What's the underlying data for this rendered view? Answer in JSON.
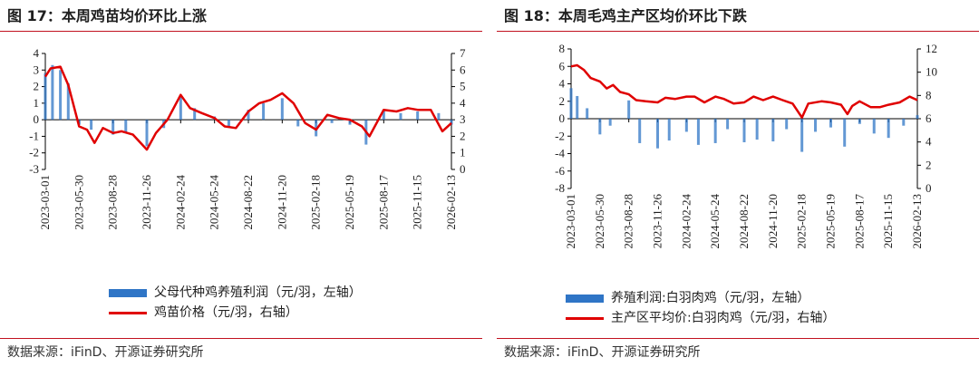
{
  "chart_data": [
    {
      "type": "bar+line",
      "title": "图 17：本周鸡苗均价环比上涨",
      "x_ticks": [
        "2023-03-01",
        "2023-05-30",
        "2023-08-28",
        "2023-11-26",
        "2024-02-24",
        "2024-05-24",
        "2024-08-22",
        "2024-11-20",
        "2025-02-18",
        "2025-05-19",
        "2025-08-17",
        "2025-11-15",
        "2026-02-13"
      ],
      "y_left": {
        "min": -3,
        "max": 4,
        "ticks": [
          "4",
          "3",
          "2",
          "1",
          "0",
          "-1",
          "-2",
          "-3"
        ]
      },
      "y_right": {
        "min": 0,
        "max": 7,
        "ticks": [
          "7",
          "6",
          "5",
          "4",
          "3",
          "2",
          "1",
          "0"
        ]
      },
      "series": [
        {
          "name": "父母代种鸡养殖利润（元/羽，左轴）",
          "type": "bar",
          "axis": "left",
          "color": "#2f75c6",
          "x": [
            "2023-03-01",
            "2023-03-20",
            "2023-04-10",
            "2023-05-01",
            "2023-05-30",
            "2023-07-01",
            "2023-08-28",
            "2023-10-01",
            "2023-11-26",
            "2024-01-10",
            "2024-02-24",
            "2024-04-01",
            "2024-05-24",
            "2024-07-01",
            "2024-08-22",
            "2024-10-01",
            "2024-11-20",
            "2025-01-01",
            "2025-02-18",
            "2025-04-01",
            "2025-05-19",
            "2025-07-01",
            "2025-08-17",
            "2025-10-01",
            "2025-11-15",
            "2026-01-10",
            "2026-02-13"
          ],
          "values": [
            2.8,
            3.3,
            3.0,
            2.2,
            -0.3,
            -0.6,
            -0.9,
            -0.8,
            -1.6,
            -0.5,
            1.4,
            0.7,
            0.2,
            -0.4,
            0.6,
            1.0,
            1.3,
            -0.4,
            -1.0,
            -0.2,
            -0.3,
            -1.5,
            0.6,
            0.4,
            0.5,
            0.4,
            -0.3
          ]
        },
        {
          "name": "鸡苗价格（元/羽，右轴）",
          "type": "line",
          "axis": "right",
          "color": "#e00000",
          "x": [
            "2023-03-01",
            "2023-03-15",
            "2023-04-10",
            "2023-05-01",
            "2023-05-30",
            "2023-06-20",
            "2023-07-10",
            "2023-08-01",
            "2023-08-28",
            "2023-09-20",
            "2023-10-20",
            "2023-11-26",
            "2023-12-20",
            "2024-01-20",
            "2024-02-24",
            "2024-03-20",
            "2024-04-20",
            "2024-05-24",
            "2024-06-20",
            "2024-07-20",
            "2024-08-22",
            "2024-09-20",
            "2024-10-20",
            "2024-11-20",
            "2024-12-20",
            "2025-01-20",
            "2025-02-18",
            "2025-03-20",
            "2025-04-20",
            "2025-05-19",
            "2025-06-20",
            "2025-07-10",
            "2025-08-17",
            "2025-09-20",
            "2025-10-20",
            "2025-11-15",
            "2025-12-20",
            "2026-01-20",
            "2026-02-13"
          ],
          "values": [
            5.6,
            6.1,
            6.2,
            5.1,
            2.6,
            2.4,
            1.6,
            2.5,
            2.2,
            2.3,
            2.1,
            1.2,
            2.2,
            3.0,
            4.5,
            3.7,
            3.4,
            3.1,
            2.6,
            2.5,
            3.5,
            4.0,
            4.2,
            4.6,
            4.0,
            2.8,
            2.4,
            3.3,
            3.1,
            3.0,
            2.6,
            2.0,
            3.6,
            3.5,
            3.7,
            3.6,
            3.6,
            2.3,
            2.8
          ]
        }
      ],
      "legend_position": "bottom-center",
      "source": "数据来源：iFinD、开源证券研究所"
    },
    {
      "type": "bar+line",
      "title": "图 18：本周毛鸡主产区均价环比下跌",
      "x_ticks": [
        "2023-03-01",
        "2023-05-30",
        "2023-08-28",
        "2023-11-26",
        "2024-02-24",
        "2024-05-24",
        "2024-08-22",
        "2024-11-20",
        "2025-02-18",
        "2025-05-19",
        "2025-08-17",
        "2025-11-15",
        "2026-02-13"
      ],
      "y_left": {
        "min": -8,
        "max": 8,
        "ticks": [
          "8",
          "6",
          "4",
          "2",
          "0",
          "-2",
          "-4",
          "-6",
          "-8"
        ]
      },
      "y_right": {
        "min": 0,
        "max": 12,
        "ticks": [
          "12",
          "10",
          "8",
          "6",
          "4",
          "2",
          "0"
        ]
      },
      "series": [
        {
          "name": "养殖利润:白羽肉鸡（元/羽，左轴）",
          "type": "bar",
          "axis": "left",
          "color": "#2f75c6",
          "x": [
            "2023-03-01",
            "2023-03-20",
            "2023-04-20",
            "2023-05-30",
            "2023-07-01",
            "2023-08-28",
            "2023-10-01",
            "2023-11-26",
            "2024-01-01",
            "2024-02-24",
            "2024-04-01",
            "2024-05-24",
            "2024-07-01",
            "2024-08-22",
            "2024-10-01",
            "2024-11-20",
            "2025-01-01",
            "2025-02-18",
            "2025-04-01",
            "2025-05-19",
            "2025-07-01",
            "2025-08-17",
            "2025-10-01",
            "2025-11-15",
            "2026-01-01",
            "2026-02-13"
          ],
          "values": [
            3.5,
            2.6,
            1.2,
            -1.8,
            -0.8,
            2.1,
            -2.8,
            -3.4,
            -2.5,
            -1.5,
            -3.0,
            -2.8,
            -1.2,
            -2.7,
            -2.4,
            -2.6,
            -1.2,
            -3.8,
            -1.5,
            -1.0,
            -3.2,
            -0.6,
            -1.7,
            -2.2,
            -0.8,
            0.4
          ]
        },
        {
          "name": "主产区平均价:白羽肉鸡（元/羽，右轴）",
          "type": "line",
          "axis": "right",
          "color": "#e00000",
          "x": [
            "2023-03-01",
            "2023-03-20",
            "2023-04-10",
            "2023-05-01",
            "2023-05-30",
            "2023-06-20",
            "2023-07-10",
            "2023-08-01",
            "2023-08-28",
            "2023-09-20",
            "2023-10-20",
            "2023-11-26",
            "2023-12-20",
            "2024-01-20",
            "2024-02-24",
            "2024-03-20",
            "2024-04-20",
            "2024-05-24",
            "2024-06-20",
            "2024-07-20",
            "2024-08-22",
            "2024-09-20",
            "2024-10-20",
            "2024-11-20",
            "2024-12-20",
            "2025-01-20",
            "2025-02-18",
            "2025-03-10",
            "2025-04-20",
            "2025-05-19",
            "2025-06-20",
            "2025-07-10",
            "2025-07-25",
            "2025-08-17",
            "2025-09-20",
            "2025-10-20",
            "2025-11-15",
            "2025-12-20",
            "2026-01-20",
            "2026-02-13"
          ],
          "values": [
            10.5,
            10.6,
            10.2,
            9.5,
            9.2,
            8.6,
            8.9,
            8.3,
            8.1,
            7.6,
            7.5,
            7.4,
            7.8,
            7.7,
            7.9,
            7.9,
            7.4,
            7.9,
            7.7,
            7.3,
            7.4,
            7.9,
            7.6,
            7.9,
            7.6,
            7.3,
            6.1,
            7.3,
            7.5,
            7.4,
            7.2,
            6.4,
            7.1,
            7.5,
            7.0,
            7.0,
            7.2,
            7.4,
            7.9,
            7.6
          ]
        }
      ],
      "legend_position": "bottom-center",
      "source": "数据来源：iFinD、开源证券研究所"
    }
  ]
}
